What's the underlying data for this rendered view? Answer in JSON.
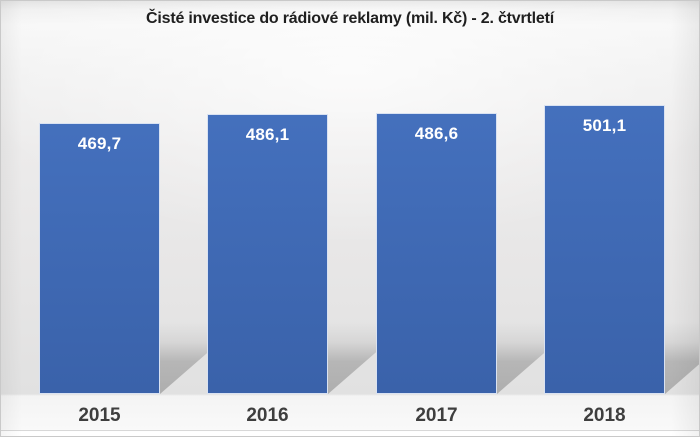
{
  "title": "Čisté investice do rádiové reklamy (mil. Kč) - 2. čtvrtletí",
  "chart_data": {
    "type": "bar",
    "title": "Čisté investice do rádiové reklamy (mil. Kč) - 2. čtvrtletí",
    "categories": [
      "2015",
      "2016",
      "2017",
      "2018"
    ],
    "values": [
      469.7,
      486.1,
      486.6,
      501.1
    ],
    "value_labels": [
      "469,7",
      "486,1",
      "486,6",
      "501,1"
    ],
    "xlabel": "",
    "ylabel": "",
    "unit": "mil. Kč",
    "ylim": [
      0,
      610
    ],
    "baseline": 0,
    "grid": false,
    "legend": false,
    "bar_label_position": "inside-top",
    "shadow_style": "perspective-right"
  },
  "colors": {
    "bar_fill_top": "#4470bd",
    "bar_fill_bottom": "#3a62aa",
    "bar_border": "#d9e2f2",
    "value_label": "#ffffff",
    "category_label": "#3e3e3e",
    "title": "#1f1f1f",
    "shadow": "#9b9b9b",
    "frame_border": "#c9c9c9"
  }
}
